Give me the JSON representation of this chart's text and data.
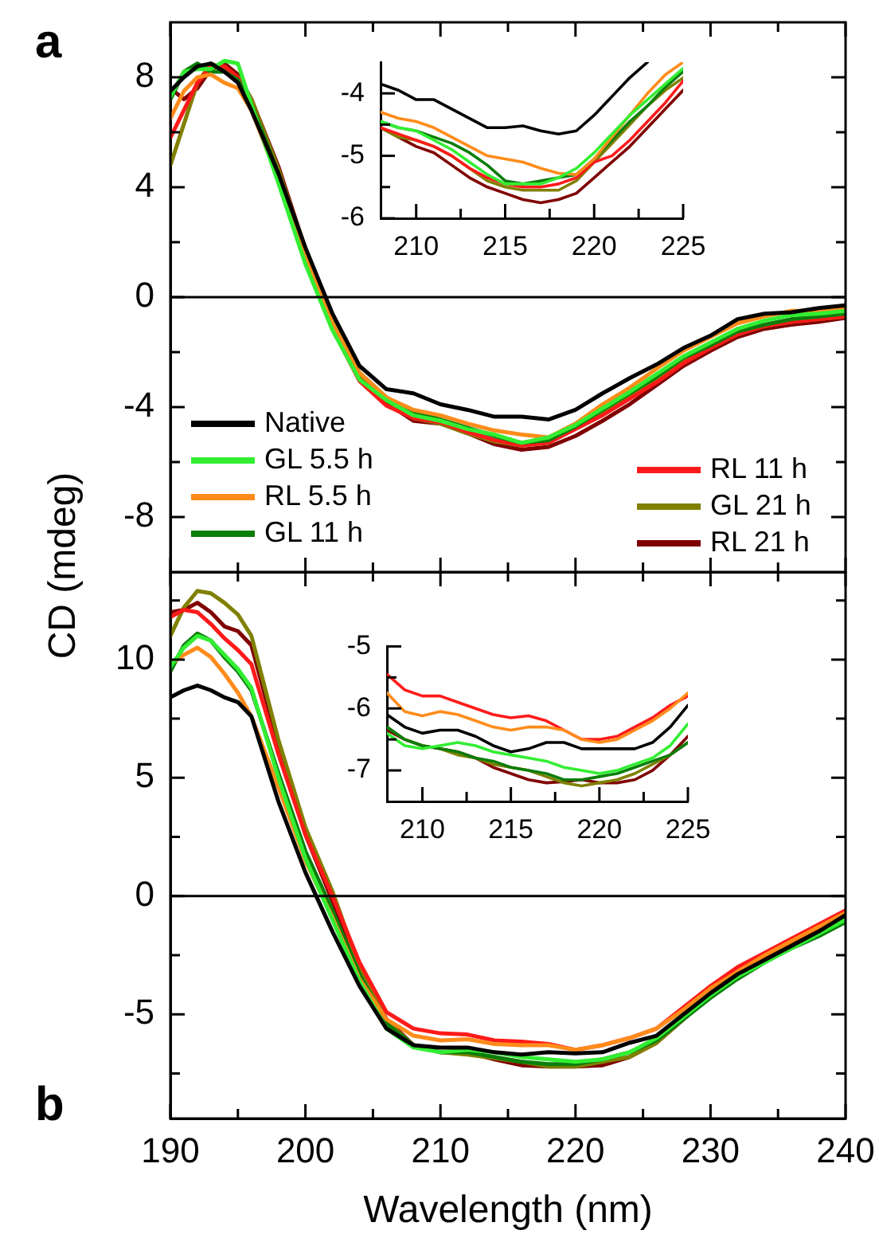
{
  "chart_data": [
    {
      "type": "line",
      "title": "a",
      "ylabel": "CD (mdeg)",
      "legend": "bottom",
      "tick_labels": "y",
      "x": [
        190,
        191,
        192,
        193,
        194,
        195,
        196,
        198,
        200,
        202,
        204,
        206,
        208,
        210,
        212,
        214,
        216,
        218,
        220,
        222,
        224,
        226,
        228,
        230,
        232,
        234,
        236,
        238,
        240
      ],
      "xlim": [
        190,
        240
      ],
      "ylim": [
        -10,
        10
      ],
      "xticks": [
        190,
        {
          "value": 195,
          "label": null
        },
        200,
        {
          "value": 205,
          "label": null
        },
        210,
        {
          "value": 215,
          "label": null
        },
        220,
        {
          "value": 225,
          "label": null
        },
        230,
        {
          "value": 235,
          "label": null
        },
        240
      ],
      "yticks": [
        -8,
        {
          "value": -6,
          "label": null
        },
        -4,
        {
          "value": -2,
          "label": null
        },
        0,
        {
          "value": 2,
          "label": null
        },
        4,
        {
          "value": 6,
          "label": null
        },
        8
      ],
      "ref_lines": [
        {
          "axis": "y",
          "value": 0
        }
      ],
      "series": [
        {
          "name": "Native",
          "color": "#000000",
          "values": [
            7.5,
            8.0,
            8.4,
            8.5,
            8.2,
            7.8,
            6.8,
            4.5,
            1.8,
            -0.6,
            -2.5,
            -3.35,
            -3.5,
            -3.9,
            -4.1,
            -4.35,
            -4.35,
            -4.45,
            -4.1,
            -3.5,
            -2.95,
            -2.45,
            -1.85,
            -1.4,
            -0.8,
            -0.6,
            -0.55,
            -0.4,
            -0.3
          ]
        },
        {
          "name": "GL 5.5 h",
          "color": "#33ee33",
          "values": [
            7.3,
            8.2,
            8.3,
            8.3,
            8.6,
            8.5,
            7.0,
            4.15,
            1.2,
            -1.2,
            -3.0,
            -3.75,
            -4.3,
            -4.5,
            -4.8,
            -5.0,
            -5.3,
            -5.1,
            -4.65,
            -4.05,
            -3.45,
            -2.8,
            -2.15,
            -1.65,
            -1.15,
            -0.85,
            -0.65,
            -0.6,
            -0.5
          ]
        },
        {
          "name": "RL 5.5 h",
          "color": "#ff8c1a",
          "values": [
            6.5,
            7.5,
            8.0,
            8.1,
            7.8,
            7.6,
            6.8,
            4.3,
            1.57,
            -0.95,
            -2.75,
            -3.65,
            -4.1,
            -4.3,
            -4.6,
            -4.85,
            -5.0,
            -5.1,
            -4.6,
            -3.9,
            -3.3,
            -2.6,
            -1.95,
            -1.45,
            -0.95,
            -0.7,
            -0.5,
            -0.5,
            -0.4
          ]
        },
        {
          "name": "GL 11 h",
          "color": "#0b7d0b",
          "values": [
            7.2,
            8.2,
            8.5,
            8.2,
            8.2,
            7.9,
            7.0,
            4.5,
            1.55,
            -0.95,
            -2.75,
            -3.65,
            -4.2,
            -4.45,
            -4.75,
            -5.05,
            -5.3,
            -5.2,
            -4.7,
            -4.1,
            -3.5,
            -2.9,
            -2.2,
            -1.75,
            -1.25,
            -1.0,
            -0.8,
            -0.7,
            -0.6
          ]
        },
        {
          "name": "RL 11 h",
          "color": "#ff1a1a",
          "values": [
            5.8,
            6.8,
            7.8,
            8.4,
            8.4,
            8.0,
            7.0,
            4.35,
            1.35,
            -1.15,
            -3.05,
            -3.95,
            -4.4,
            -4.55,
            -4.9,
            -5.2,
            -5.4,
            -5.3,
            -4.8,
            -4.3,
            -3.7,
            -3.1,
            -2.4,
            -1.85,
            -1.35,
            -1.05,
            -0.9,
            -0.8,
            -0.7
          ]
        },
        {
          "name": "GL 21 h",
          "color": "#808000",
          "values": [
            4.8,
            6.3,
            7.8,
            8.5,
            8.3,
            8.0,
            7.2,
            4.65,
            1.65,
            -0.85,
            -2.85,
            -3.75,
            -4.4,
            -4.6,
            -4.95,
            -5.25,
            -5.4,
            -5.3,
            -4.75,
            -4.2,
            -3.6,
            -3.0,
            -2.35,
            -1.85,
            -1.35,
            -1.05,
            -0.9,
            -0.8,
            -0.7
          ]
        },
        {
          "name": "RL 21 h",
          "color": "#800000",
          "values": [
            7.6,
            7.2,
            7.6,
            8.3,
            8.5,
            8.1,
            7.2,
            4.75,
            1.75,
            -0.95,
            -2.85,
            -3.85,
            -4.5,
            -4.6,
            -4.95,
            -5.35,
            -5.55,
            -5.45,
            -5.05,
            -4.5,
            -3.9,
            -3.2,
            -2.5,
            -1.95,
            -1.45,
            -1.15,
            -1.0,
            -0.9,
            -0.75
          ]
        }
      ]
    },
    {
      "type": "line",
      "x": [
        208,
        209,
        210,
        211,
        212,
        213,
        214,
        215,
        216,
        217,
        218,
        219,
        220,
        221,
        222,
        223,
        224,
        225
      ],
      "xlim": [
        208,
        225
      ],
      "ylim": [
        -6,
        -3.5
      ],
      "xticks": [
        210,
        {
          "value": 212.5,
          "label": null
        },
        215,
        {
          "value": 217.5,
          "label": null
        },
        220,
        {
          "value": 222.5,
          "label": null
        },
        225
      ],
      "yticks": [
        -6,
        {
          "value": -5.5,
          "label": null
        },
        -5,
        {
          "value": -4.5,
          "label": null
        },
        -4
      ],
      "series": [
        {
          "color": "#000000",
          "values": [
            -3.85,
            -3.95,
            -4.1,
            -4.1,
            -4.25,
            -4.4,
            -4.55,
            -4.55,
            -4.52,
            -4.6,
            -4.65,
            -4.6,
            -4.35,
            -4.05,
            -3.75,
            -3.5,
            null,
            null
          ]
        },
        {
          "color": "#33ee33",
          "values": [
            -4.45,
            -4.55,
            -4.6,
            -4.75,
            -4.9,
            -5.1,
            -5.3,
            -5.45,
            -5.45,
            -5.45,
            -5.35,
            -5.2,
            -4.95,
            -4.65,
            -4.35,
            -4.1,
            -3.85,
            -3.6
          ]
        },
        {
          "color": "#ff8c1a",
          "values": [
            -4.3,
            -4.4,
            -4.45,
            -4.55,
            -4.7,
            -4.85,
            -5.0,
            -5.05,
            -5.1,
            -5.2,
            -5.28,
            -5.3,
            -5.05,
            -4.7,
            -4.35,
            -4.0,
            -3.7,
            -3.5
          ]
        },
        {
          "color": "#0b7d0b",
          "values": [
            -4.45,
            -4.55,
            -4.6,
            -4.7,
            -4.8,
            -4.95,
            -5.15,
            -5.4,
            -5.45,
            -5.4,
            -5.35,
            -5.3,
            -5.05,
            -4.75,
            -4.45,
            -4.2,
            -3.9,
            -3.65
          ]
        },
        {
          "color": "#ff1a1a",
          "values": [
            -4.55,
            -4.65,
            -4.75,
            -4.85,
            -5.0,
            -5.2,
            -5.35,
            -5.45,
            -5.5,
            -5.5,
            -5.45,
            -5.35,
            -5.1,
            -5.0,
            -4.75,
            -4.45,
            -4.15,
            -3.8
          ]
        },
        {
          "color": "#808000",
          "values": [
            -4.55,
            -4.7,
            -4.75,
            -4.85,
            -5.0,
            -5.2,
            -5.4,
            -5.5,
            -5.55,
            -5.55,
            -5.55,
            -5.4,
            -5.1,
            -4.8,
            -4.5,
            -4.2,
            -3.95,
            -3.75
          ]
        },
        {
          "color": "#800000",
          "values": [
            -4.55,
            -4.7,
            -4.85,
            -4.95,
            -5.15,
            -5.35,
            -5.5,
            -5.6,
            -5.7,
            -5.75,
            -5.7,
            -5.6,
            -5.35,
            -5.1,
            -4.85,
            -4.55,
            -4.25,
            -3.95
          ]
        }
      ]
    },
    {
      "type": "line",
      "title": "b",
      "xlabel": "Wavelength (nm)",
      "x": [
        190,
        191,
        192,
        193,
        194,
        195,
        196,
        198,
        200,
        202,
        204,
        206,
        208,
        210,
        212,
        214,
        216,
        218,
        220,
        222,
        224,
        226,
        228,
        230,
        232,
        234,
        236,
        238,
        240
      ],
      "xlim": [
        190,
        240
      ],
      "ylim": [
        -9.4,
        13.7
      ],
      "xticks": [
        190,
        {
          "value": 195,
          "label": null
        },
        200,
        {
          "value": 205,
          "label": null
        },
        210,
        {
          "value": 215,
          "label": null
        },
        220,
        {
          "value": 225,
          "label": null
        },
        230,
        {
          "value": 235,
          "label": null
        },
        240
      ],
      "yticks": [
        {
          "value": -7.5,
          "label": null
        },
        -5,
        {
          "value": -2.5,
          "label": null
        },
        0,
        {
          "value": 2.5,
          "label": null
        },
        5,
        {
          "value": 7.5,
          "label": null
        },
        10,
        {
          "value": 12.5,
          "label": null
        }
      ],
      "ref_lines": [
        {
          "axis": "y",
          "value": 0
        }
      ],
      "series": [
        {
          "color": "#000000",
          "values": [
            8.4,
            8.7,
            8.9,
            8.7,
            8.4,
            8.2,
            7.6,
            4.0,
            1.0,
            -1.5,
            -3.8,
            -5.6,
            -6.3,
            -6.4,
            -6.4,
            -6.6,
            -6.7,
            -6.6,
            -6.65,
            -6.6,
            -6.2,
            -5.9,
            -5.0,
            -4.1,
            -3.3,
            -2.7,
            -2.1,
            -1.5,
            -0.8
          ]
        },
        {
          "color": "#33ee33",
          "values": [
            9.7,
            10.5,
            11.0,
            10.8,
            10.2,
            9.6,
            8.8,
            5.0,
            1.6,
            -1.0,
            -3.6,
            -5.6,
            -6.4,
            -6.6,
            -6.5,
            -6.6,
            -6.8,
            -6.9,
            -7.0,
            -6.9,
            -6.6,
            -6.0,
            -5.1,
            -4.2,
            -3.4,
            -2.8,
            -2.2,
            -1.6,
            -1.0
          ]
        },
        {
          "color": "#ff8c1a",
          "values": [
            9.8,
            10.2,
            10.5,
            10.1,
            9.4,
            8.6,
            7.6,
            4.6,
            1.5,
            -0.9,
            -3.5,
            -5.2,
            -5.9,
            -6.1,
            -6.05,
            -6.25,
            -6.3,
            -6.3,
            -6.5,
            -6.3,
            -6.0,
            -5.6,
            -4.8,
            -3.9,
            -3.2,
            -2.5,
            -1.9,
            -1.3,
            -0.7
          ]
        },
        {
          "color": "#0b7d0b",
          "values": [
            9.5,
            10.6,
            11.1,
            10.8,
            10.1,
            9.5,
            8.7,
            5.2,
            1.9,
            -0.6,
            -3.3,
            -5.4,
            -6.3,
            -6.6,
            -6.6,
            -6.8,
            -7.0,
            -7.1,
            -7.1,
            -6.9,
            -6.6,
            -6.1,
            -5.2,
            -4.3,
            -3.5,
            -2.8,
            -2.2,
            -1.7,
            -1.1
          ]
        },
        {
          "color": "#ff1a1a",
          "values": [
            11.8,
            12.1,
            12.0,
            11.5,
            10.9,
            10.4,
            9.8,
            6.0,
            2.6,
            0.0,
            -2.8,
            -4.9,
            -5.6,
            -5.8,
            -5.85,
            -6.1,
            -6.15,
            -6.25,
            -6.5,
            -6.3,
            -6.0,
            -5.6,
            -4.7,
            -3.8,
            -3.0,
            -2.4,
            -1.8,
            -1.2,
            -0.6
          ]
        },
        {
          "color": "#808000",
          "values": [
            11.0,
            12.2,
            12.9,
            12.8,
            12.4,
            11.9,
            11.0,
            6.6,
            2.9,
            0.2,
            -3.0,
            -5.3,
            -6.3,
            -6.6,
            -6.7,
            -6.85,
            -7.0,
            -7.2,
            -7.2,
            -7.0,
            -6.8,
            -6.2,
            -5.2,
            -4.2,
            -3.4,
            -2.7,
            -2.1,
            -1.6,
            -1.0
          ]
        },
        {
          "color": "#800000",
          "values": [
            12.0,
            12.1,
            12.4,
            12.0,
            11.4,
            11.2,
            10.6,
            6.4,
            2.6,
            -0.2,
            -3.0,
            -5.2,
            -6.3,
            -6.6,
            -6.6,
            -6.9,
            -7.15,
            -7.2,
            -7.2,
            -7.15,
            -6.8,
            -6.2,
            -5.2,
            -4.2,
            -3.3,
            -2.6,
            -2.0,
            -1.4,
            -0.9
          ]
        }
      ]
    },
    {
      "type": "line",
      "x": [
        208,
        209,
        210,
        211,
        212,
        213,
        214,
        215,
        216,
        217,
        218,
        219,
        220,
        221,
        222,
        223,
        224,
        225
      ],
      "xlim": [
        208,
        225
      ],
      "ylim": [
        -7.5,
        -5
      ],
      "xticks": [
        210,
        {
          "value": 212.5,
          "label": null
        },
        215,
        {
          "value": 217.5,
          "label": null
        },
        220,
        {
          "value": 222.5,
          "label": null
        },
        225
      ],
      "yticks": [
        -7,
        {
          "value": -6.5,
          "label": null
        },
        -6,
        {
          "value": -5.5,
          "label": null
        },
        -5
      ],
      "series": [
        {
          "color": "#000000",
          "values": [
            -6.1,
            -6.3,
            -6.4,
            -6.35,
            -6.35,
            -6.45,
            -6.6,
            -6.7,
            -6.65,
            -6.55,
            -6.55,
            -6.65,
            -6.65,
            -6.65,
            -6.65,
            -6.55,
            -6.3,
            -5.95
          ]
        },
        {
          "color": "#33ee33",
          "values": [
            -6.4,
            -6.6,
            -6.65,
            -6.6,
            -6.55,
            -6.6,
            -6.7,
            -6.75,
            -6.8,
            -6.85,
            -6.95,
            -7.0,
            -7.05,
            -7.0,
            -6.9,
            -6.8,
            -6.6,
            -6.25
          ]
        },
        {
          "color": "#ff8c1a",
          "values": [
            -5.75,
            -6.05,
            -6.12,
            -6.05,
            -6.1,
            -6.2,
            -6.3,
            -6.35,
            -6.3,
            -6.3,
            -6.35,
            -6.5,
            -6.55,
            -6.5,
            -6.35,
            -6.2,
            -6.0,
            -5.75
          ]
        },
        {
          "color": "#0b7d0b",
          "values": [
            -6.3,
            -6.5,
            -6.6,
            -6.65,
            -6.7,
            -6.8,
            -6.85,
            -6.95,
            -7.0,
            -7.05,
            -7.15,
            -7.15,
            -7.1,
            -7.05,
            -6.95,
            -6.85,
            -6.75,
            -6.55
          ]
        },
        {
          "color": "#ff1a1a",
          "values": [
            -5.45,
            -5.7,
            -5.8,
            -5.8,
            -5.9,
            -6.0,
            -6.1,
            -6.15,
            -6.12,
            -6.2,
            -6.35,
            -6.5,
            -6.5,
            -6.45,
            -6.3,
            -6.15,
            -5.95,
            -5.8
          ]
        },
        {
          "color": "#808000",
          "values": [
            -6.3,
            -6.5,
            -6.6,
            -6.65,
            -6.75,
            -6.8,
            -6.9,
            -6.95,
            -7.0,
            -7.1,
            -7.2,
            -7.25,
            -7.2,
            -7.15,
            -7.05,
            -6.9,
            -6.75,
            -6.55
          ]
        },
        {
          "color": "#800000",
          "values": [
            -6.35,
            -6.5,
            -6.6,
            -6.65,
            -6.7,
            -6.8,
            -6.95,
            -7.05,
            -7.15,
            -7.2,
            -7.18,
            -7.15,
            -7.2,
            -7.2,
            -7.15,
            -7.0,
            -6.75,
            -6.45
          ]
        }
      ]
    }
  ]
}
